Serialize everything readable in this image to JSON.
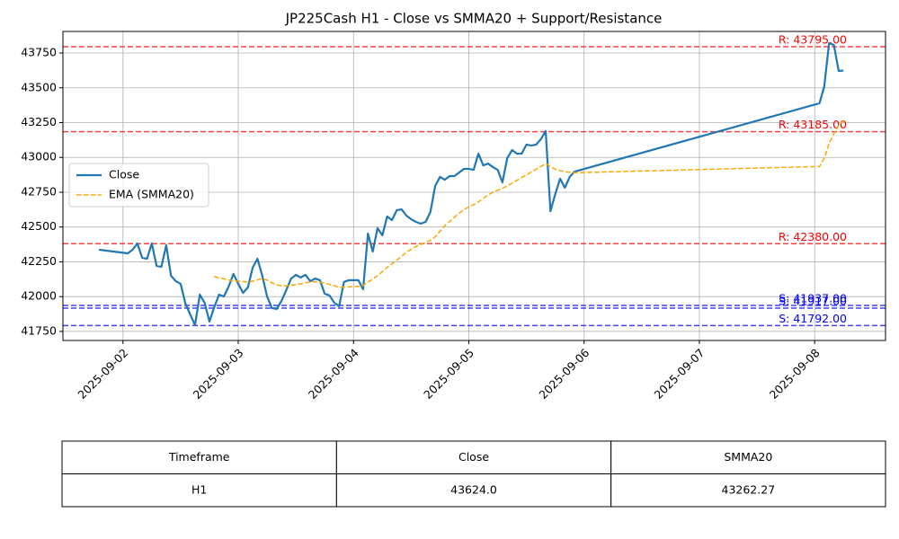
{
  "chart_data": {
    "type": "line",
    "title": "JP225Cash H1 - Close vs SMMA20 + Support/Resistance",
    "x": [
      "2025-09-01 19:00",
      "2025-09-02 01:00",
      "2025-09-02 02:00",
      "2025-09-02 03:00",
      "2025-09-02 04:00",
      "2025-09-02 05:00",
      "2025-09-02 06:00",
      "2025-09-02 07:00",
      "2025-09-02 08:00",
      "2025-09-02 09:00",
      "2025-09-02 10:00",
      "2025-09-02 11:00",
      "2025-09-02 12:00",
      "2025-09-02 13:00",
      "2025-09-02 14:00",
      "2025-09-02 15:00",
      "2025-09-02 16:00",
      "2025-09-02 17:00",
      "2025-09-02 18:00",
      "2025-09-02 19:00",
      "2025-09-02 20:00",
      "2025-09-02 21:00",
      "2025-09-02 22:00",
      "2025-09-02 23:00",
      "2025-09-03 00:00",
      "2025-09-03 01:00",
      "2025-09-03 02:00",
      "2025-09-03 03:00",
      "2025-09-03 04:00",
      "2025-09-03 05:00",
      "2025-09-03 06:00",
      "2025-09-03 07:00",
      "2025-09-03 08:00",
      "2025-09-03 09:00",
      "2025-09-03 10:00",
      "2025-09-03 11:00",
      "2025-09-03 12:00",
      "2025-09-03 13:00",
      "2025-09-03 14:00",
      "2025-09-03 15:00",
      "2025-09-03 16:00",
      "2025-09-03 17:00",
      "2025-09-03 18:00",
      "2025-09-03 19:00",
      "2025-09-03 20:00",
      "2025-09-03 21:00",
      "2025-09-03 22:00",
      "2025-09-03 23:00",
      "2025-09-04 00:00",
      "2025-09-04 01:00",
      "2025-09-04 02:00",
      "2025-09-04 03:00",
      "2025-09-04 04:00",
      "2025-09-04 05:00",
      "2025-09-04 06:00",
      "2025-09-04 07:00",
      "2025-09-04 08:00",
      "2025-09-04 09:00",
      "2025-09-04 10:00",
      "2025-09-04 11:00",
      "2025-09-04 12:00",
      "2025-09-04 13:00",
      "2025-09-04 14:00",
      "2025-09-04 15:00",
      "2025-09-04 16:00",
      "2025-09-04 17:00",
      "2025-09-04 18:00",
      "2025-09-04 19:00",
      "2025-09-04 20:00",
      "2025-09-04 21:00",
      "2025-09-04 22:00",
      "2025-09-04 23:00",
      "2025-09-05 00:00",
      "2025-09-05 01:00",
      "2025-09-05 02:00",
      "2025-09-05 03:00",
      "2025-09-05 04:00",
      "2025-09-05 05:00",
      "2025-09-05 06:00",
      "2025-09-05 07:00",
      "2025-09-05 08:00",
      "2025-09-05 09:00",
      "2025-09-05 10:00",
      "2025-09-05 11:00",
      "2025-09-05 12:00",
      "2025-09-05 13:00",
      "2025-09-05 14:00",
      "2025-09-05 15:00",
      "2025-09-05 16:00",
      "2025-09-05 17:00",
      "2025-09-05 18:00",
      "2025-09-05 19:00",
      "2025-09-05 20:00",
      "2025-09-05 21:00",
      "2025-09-05 22:00",
      "2025-09-08 01:00",
      "2025-09-08 02:00",
      "2025-09-08 03:00",
      "2025-09-08 04:00",
      "2025-09-08 05:00",
      "2025-09-08 06:00"
    ],
    "series": [
      {
        "name": "Close",
        "color": "#1f77b4",
        "dashed": false,
        "values": [
          42337,
          42311,
          42337,
          42382,
          42279,
          42272,
          42382,
          42221,
          42214,
          42369,
          42150,
          42111,
          42092,
          41950,
          41872,
          41795,
          42014,
          41956,
          41821,
          41924,
          42014,
          42001,
          42072,
          42163,
          42092,
          42027,
          42066,
          42208,
          42272,
          42150,
          42001,
          41918,
          41911,
          41969,
          42047,
          42130,
          42156,
          42137,
          42156,
          42111,
          42130,
          42118,
          42021,
          42008,
          41956,
          41931,
          42105,
          42118,
          42118,
          42118,
          42053,
          42453,
          42324,
          42492,
          42440,
          42576,
          42550,
          42621,
          42627,
          42582,
          42556,
          42537,
          42524,
          42537,
          42608,
          42795,
          42860,
          42840,
          42866,
          42866,
          42892,
          42918,
          42918,
          42911,
          43027,
          42943,
          42956,
          42931,
          42911,
          42821,
          42995,
          43053,
          43027,
          43027,
          43092,
          43085,
          43092,
          43131,
          43189,
          42614,
          42737,
          42847,
          42782,
          42860,
          42898,
          43389,
          43511,
          43821,
          43808,
          43621,
          43624
        ]
      },
      {
        "name": "EMA (SMMA20)",
        "color": "#ffa500",
        "dashed": true,
        "values": [
          null,
          null,
          null,
          null,
          null,
          null,
          null,
          null,
          null,
          null,
          null,
          null,
          null,
          null,
          null,
          null,
          null,
          null,
          null,
          42143,
          42135,
          42128,
          42120,
          42112,
          42112,
          42108,
          42105,
          42111,
          42120,
          42130,
          42118,
          42100,
          42085,
          42078,
          42078,
          42082,
          42085,
          42092,
          42100,
          42105,
          42108,
          42103,
          42098,
          42088,
          42078,
          42066,
          42068,
          42070,
          42072,
          42073,
          42080,
          42105,
          42125,
          42150,
          42180,
          42210,
          42235,
          42262,
          42290,
          42318,
          42340,
          42360,
          42375,
          42390,
          42405,
          42430,
          42470,
          42510,
          42540,
          42570,
          42600,
          42625,
          42645,
          42660,
          42680,
          42705,
          42730,
          42750,
          42765,
          42778,
          42795,
          42815,
          42835,
          42855,
          42875,
          42895,
          42915,
          42935,
          42955,
          42935,
          42915,
          42905,
          42898,
          42893,
          42890,
          42935,
          42995,
          43098,
          43170,
          43230,
          43262.27
        ]
      }
    ],
    "levels": [
      {
        "value": 43795,
        "label": "R: 43795.00",
        "color": "#ff0000"
      },
      {
        "value": 43185,
        "label": "R: 43185.00",
        "color": "#ff0000"
      },
      {
        "value": 42380,
        "label": "R: 42380.00",
        "color": "#ff0000"
      },
      {
        "value": 41937,
        "label": "S: 41937.00",
        "color": "#0000ff"
      },
      {
        "value": 41917,
        "label": "S: 41917.00",
        "color": "#0000ff"
      },
      {
        "value": 41792,
        "label": "S: 41792.00",
        "color": "#0000ff"
      }
    ],
    "xlim": [
      "2025-09-01 11:30",
      "2025-09-08 14:45"
    ],
    "xticks": [
      "2025-09-02",
      "2025-09-03",
      "2025-09-04",
      "2025-09-05",
      "2025-09-06",
      "2025-09-07",
      "2025-09-08"
    ],
    "ylim": [
      41685,
      43905
    ],
    "yticks": [
      41750,
      42000,
      42250,
      42500,
      42750,
      43000,
      43250,
      43500,
      43750
    ],
    "grid": true,
    "legend": "center left"
  },
  "table": {
    "columns": [
      "Timeframe",
      "Close",
      "SMMA20"
    ],
    "rows": [
      [
        "H1",
        "43624.0",
        "43262.27"
      ]
    ]
  }
}
